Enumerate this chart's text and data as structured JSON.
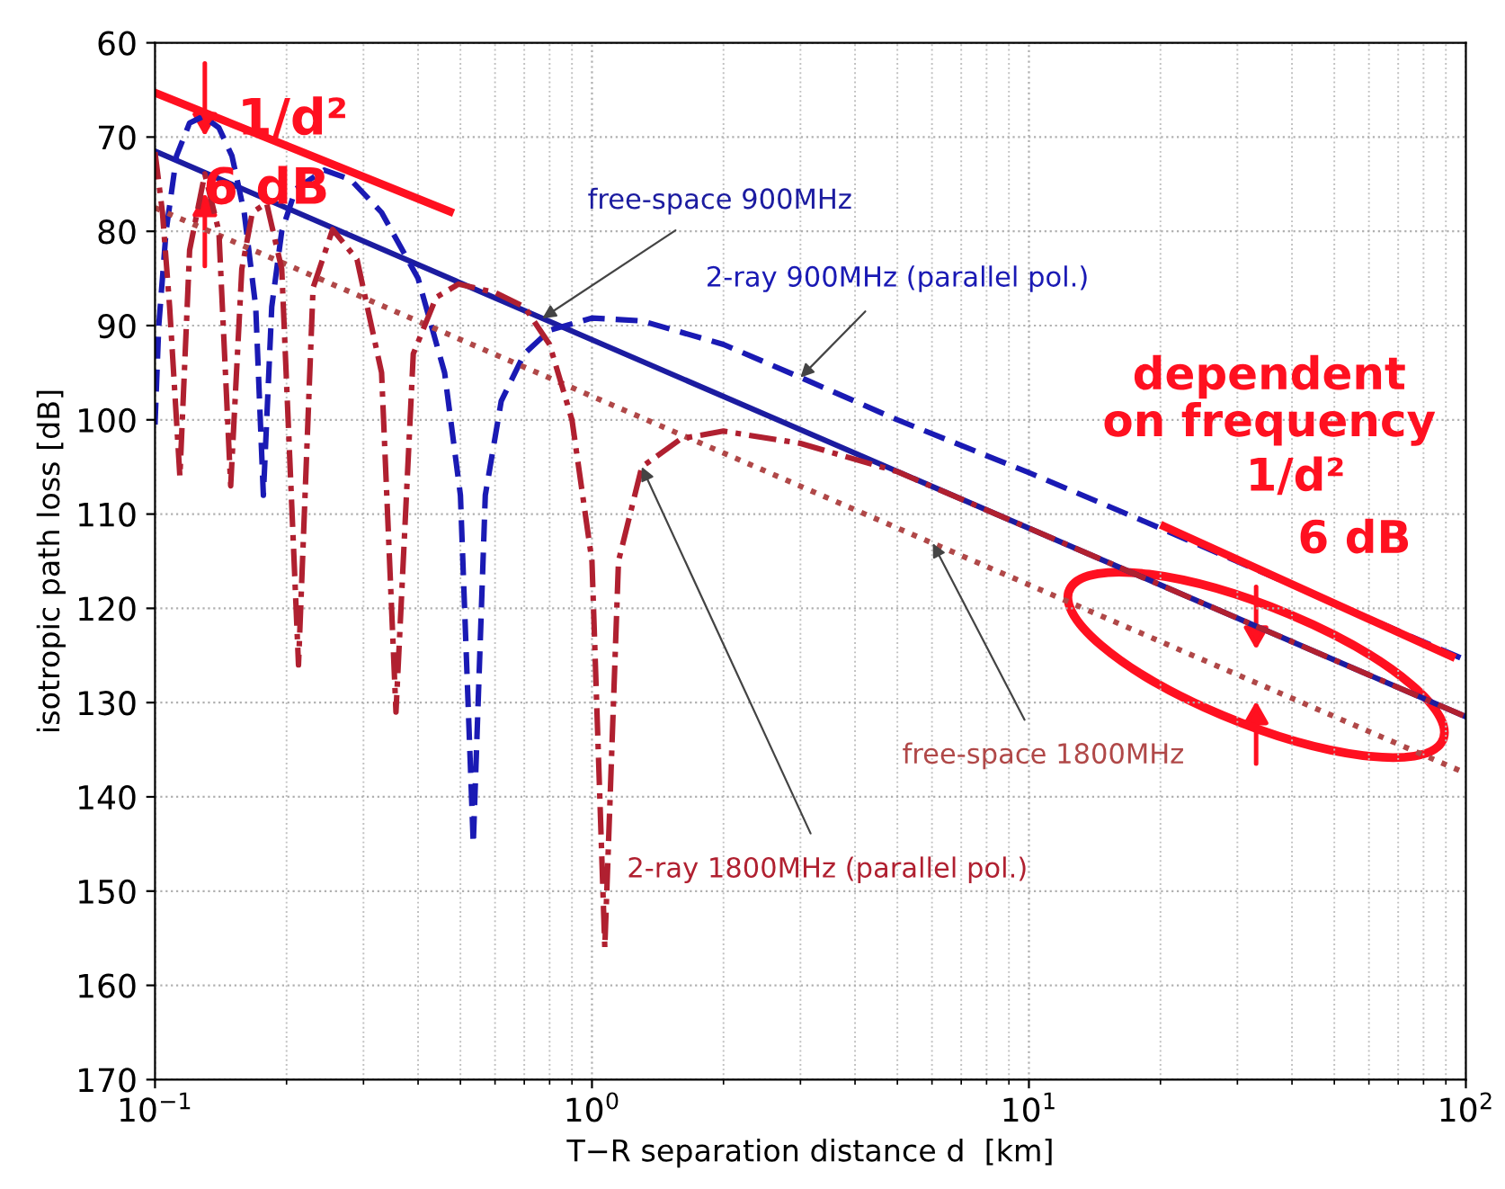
{
  "chart_data": {
    "type": "line",
    "xlabel": "T−R separation distance d  [km]",
    "ylabel": "isotropic path loss [dB]",
    "log": "x",
    "grid": true,
    "legend": false,
    "xlim": [
      0.1,
      100
    ],
    "xticks": [
      {
        "value": 0.1,
        "label": "10$^{−1}$"
      },
      {
        "value": 1,
        "label": "10$^{0}$"
      },
      {
        "value": 10,
        "label": "10$^{1}$"
      },
      {
        "value": 100,
        "label": "10$^{2}$"
      }
    ],
    "ylim": [
      170,
      60
    ],
    "yticks": [
      60,
      70,
      80,
      90,
      100,
      110,
      120,
      130,
      140,
      150,
      160,
      170
    ],
    "series": [
      {
        "name": "free-space 900MHz",
        "color": "#1c1ca0",
        "line_style": "solid",
        "x": [
          0.1,
          100
        ],
        "values": [
          71.5,
          131.5
        ]
      },
      {
        "name": "2-ray 900MHz (parallel pol.)",
        "color": "#1a1ab4",
        "line_style": "dashed",
        "x": [
          0.1,
          0.102,
          0.106,
          0.112,
          0.12,
          0.129,
          0.14,
          0.15,
          0.16,
          0.17,
          0.177,
          0.185,
          0.195,
          0.21,
          0.244,
          0.28,
          0.33,
          0.4,
          0.46,
          0.5,
          0.535,
          0.57,
          0.62,
          0.7,
          0.8,
          1.0,
          1.3,
          2,
          3,
          5,
          10,
          20,
          100
        ],
        "values": [
          100.5,
          90,
          80,
          72,
          68.5,
          67.8,
          69,
          72,
          78,
          88,
          108,
          88,
          80,
          75.5,
          73.5,
          74.5,
          78,
          85,
          95,
          108,
          145,
          108,
          98,
          93,
          90.5,
          89.2,
          89.5,
          92,
          95.5,
          100,
          105.6,
          111.5,
          125.5
        ]
      },
      {
        "name": "free-space 1800MHz",
        "color": "#b04848",
        "line_style": "dotted",
        "x": [
          0.1,
          100
        ],
        "values": [
          77.5,
          137.5
        ]
      },
      {
        "name": "2-ray 1800MHz (parallel pol.)",
        "color": "#b02030",
        "line_style": "dashdot",
        "x": [
          0.1,
          0.104,
          0.108,
          0.114,
          0.12,
          0.13,
          0.14,
          0.149,
          0.158,
          0.167,
          0.18,
          0.195,
          0.213,
          0.23,
          0.255,
          0.29,
          0.33,
          0.356,
          0.39,
          0.44,
          0.495,
          0.6,
          0.7,
          0.8,
          0.9,
          1.0,
          1.07,
          1.15,
          1.3,
          1.6,
          2.0,
          3,
          5,
          10,
          100
        ],
        "values": [
          71.6,
          78,
          88,
          106,
          82,
          73.9,
          80,
          107,
          84,
          78,
          77,
          84,
          126,
          86,
          79.8,
          83,
          95,
          131,
          93,
          87,
          85.6,
          86.5,
          88,
          92,
          100,
          115,
          156,
          115,
          105,
          102,
          101.2,
          102.5,
          105.5,
          111.5,
          131.5
        ]
      },
      {
        "color": "#ff1020",
        "line_style": "solid",
        "x": [
          0.1,
          0.473
        ],
        "values": [
          65.3,
          77.9
        ]
      },
      {
        "color": "#ff1020",
        "line_style": "solid",
        "x": [
          20.4,
          92.7
        ],
        "values": [
          111.3,
          125.1
        ]
      }
    ],
    "annotations": [
      "1/d²",
      "6 dB",
      "dependent\non frequency",
      "1/d²",
      "6 dB"
    ]
  }
}
